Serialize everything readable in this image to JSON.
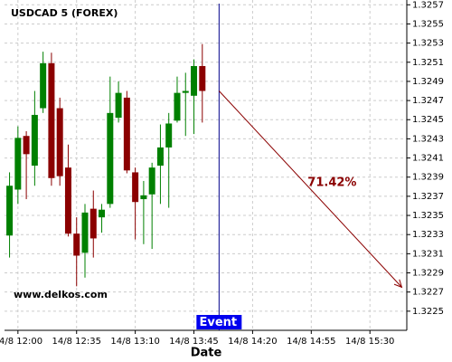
{
  "chart_data": {
    "type": "candlestick",
    "title": "USDCAD 5 (FOREX)",
    "x_label": "Date",
    "watermark": "www.delkos.com",
    "x": [
      "14/8 11:55",
      "14/8 12:00",
      "14/8 12:05",
      "14/8 12:10",
      "14/8 12:15",
      "14/8 12:20",
      "14/8 12:25",
      "14/8 12:30",
      "14/8 12:35",
      "14/8 12:40",
      "14/8 12:45",
      "14/8 12:50",
      "14/8 12:55",
      "14/8 13:00",
      "14/8 13:05",
      "14/8 13:10",
      "14/8 13:15",
      "14/8 13:20",
      "14/8 13:25",
      "14/8 13:30",
      "14/8 13:35",
      "14/8 13:40",
      "14/8 13:45",
      "14/8 13:50"
    ],
    "open": [
      1.32329,
      1.32377,
      1.32433,
      1.32402,
      1.32462,
      1.32509,
      1.32462,
      1.324,
      1.32331,
      1.32311,
      1.32357,
      1.32348,
      1.32362,
      1.32452,
      1.32473,
      1.32395,
      1.32367,
      1.32372,
      1.32402,
      1.32421,
      1.32449,
      1.32478,
      1.32475,
      1.32506
    ],
    "high": [
      1.32395,
      1.32443,
      1.32438,
      1.3248,
      1.32521,
      1.3252,
      1.32473,
      1.32424,
      1.32348,
      1.32362,
      1.32376,
      1.32362,
      1.32495,
      1.3249,
      1.3248,
      1.324,
      1.32386,
      1.32405,
      1.32445,
      1.32457,
      1.32495,
      1.32499,
      1.32513,
      1.32529
    ],
    "low": [
      1.32306,
      1.32362,
      1.32367,
      1.32381,
      1.32457,
      1.32381,
      1.32381,
      1.32328,
      1.32276,
      1.32285,
      1.32306,
      1.32332,
      1.32358,
      1.32447,
      1.32394,
      1.32325,
      1.3232,
      1.32315,
      1.32362,
      1.32358,
      1.32447,
      1.32433,
      1.32435,
      1.32447
    ],
    "close": [
      1.32381,
      1.32431,
      1.32414,
      1.32455,
      1.32509,
      1.32389,
      1.32391,
      1.32331,
      1.32308,
      1.32353,
      1.32326,
      1.32356,
      1.32457,
      1.32478,
      1.32397,
      1.32364,
      1.32371,
      1.324,
      1.32421,
      1.32446,
      1.32478,
      1.3248,
      1.32506,
      1.3248
    ],
    "up_color": "#008000",
    "down_color": "#8b0000",
    "xlim": [
      "14/8 11:52",
      "14/8 15:52"
    ],
    "xticks": [
      "14/8 12:00",
      "14/8 12:35",
      "14/8 13:10",
      "14/8 13:45",
      "14/8 14:20",
      "14/8 14:55",
      "14/8 15:30"
    ],
    "ylim": [
      1.3223,
      1.32575
    ],
    "yticks": [
      1.3225,
      1.3227,
      1.3229,
      1.3231,
      1.3233,
      1.3235,
      1.3237,
      1.3239,
      1.3241,
      1.3243,
      1.3245,
      1.3247,
      1.3249,
      1.3251,
      1.3253,
      1.3255,
      1.3257
    ],
    "grid": true,
    "event": {
      "x": "14/8 14:00",
      "label": "Event",
      "color": "#00008b"
    },
    "forecast": {
      "from": [
        "14/8 14:00",
        1.3248
      ],
      "to": [
        "14/8 15:49",
        1.32275
      ],
      "label": "71.42%",
      "color": "#8b0000"
    }
  }
}
